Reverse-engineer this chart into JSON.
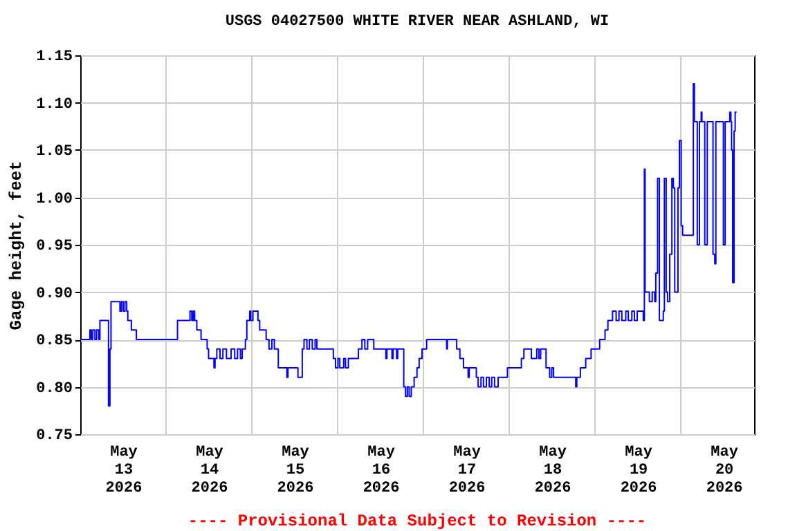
{
  "chart_data": {
    "type": "step",
    "title": "USGS 04027500 WHITE RIVER NEAR ASHLAND, WI",
    "ylabel": "Gage height, feet",
    "annotations": [
      "---- Provisional Data Subject to Revision ----"
    ],
    "xlim": [
      "2026-05-13T00:00",
      "2026-05-20T20:30"
    ],
    "xticks": [
      {
        "value": "2026-05-13T12:00",
        "label": "May 13 2026"
      },
      {
        "value": "2026-05-14T00:00",
        "label": null
      },
      {
        "value": "2026-05-14T12:00",
        "label": "May 14 2026"
      },
      {
        "value": "2026-05-15T00:00",
        "label": null
      },
      {
        "value": "2026-05-15T12:00",
        "label": "May 15 2026"
      },
      {
        "value": "2026-05-16T00:00",
        "label": null
      },
      {
        "value": "2026-05-16T12:00",
        "label": "May 16 2026"
      },
      {
        "value": "2026-05-17T00:00",
        "label": null
      },
      {
        "value": "2026-05-17T12:00",
        "label": "May 17 2026"
      },
      {
        "value": "2026-05-18T00:00",
        "label": null
      },
      {
        "value": "2026-05-18T12:00",
        "label": "May 18 2026"
      },
      {
        "value": "2026-05-19T00:00",
        "label": null
      },
      {
        "value": "2026-05-19T12:00",
        "label": "May 19 2026"
      },
      {
        "value": "2026-05-20T00:00",
        "label": null
      },
      {
        "value": "2026-05-20T12:00",
        "label": "May 20 2026"
      }
    ],
    "ylim": [
      0.75,
      1.15
    ],
    "yticks": [
      0.75,
      {
        "value": 0.8,
        "label": "0.80"
      },
      0.85,
      {
        "value": 0.9,
        "label": "0.90"
      },
      0.95,
      {
        "value": 1.0,
        "label": "1.00"
      },
      1.05,
      {
        "value": 1.1,
        "label": "1.10"
      },
      1.15
    ],
    "grid": true,
    "series": [
      {
        "color": "#0000ff",
        "x": [
          "2026-05-13T00:00",
          "2026-05-13T02:42",
          "2026-05-13T03:06",
          "2026-05-13T03:30",
          "2026-05-13T04:06",
          "2026-05-13T04:36",
          "2026-05-13T05:12",
          "2026-05-13T05:30",
          "2026-05-13T07:54",
          "2026-05-13T08:18",
          "2026-05-13T08:36",
          "2026-05-13T11:06",
          "2026-05-13T11:30",
          "2026-05-13T12:00",
          "2026-05-13T12:30",
          "2026-05-13T13:00",
          "2026-05-13T13:18",
          "2026-05-13T14:18",
          "2026-05-13T15:42",
          "2026-05-14T03:12",
          "2026-05-14T06:42",
          "2026-05-14T07:12",
          "2026-05-14T07:36",
          "2026-05-14T08:00",
          "2026-05-14T08:36",
          "2026-05-14T09:48",
          "2026-05-14T11:30",
          "2026-05-14T11:54",
          "2026-05-14T13:24",
          "2026-05-14T13:42",
          "2026-05-14T14:12",
          "2026-05-14T15:06",
          "2026-05-14T15:54",
          "2026-05-14T16:54",
          "2026-05-14T18:12",
          "2026-05-14T19:12",
          "2026-05-14T20:00",
          "2026-05-14T20:48",
          "2026-05-14T21:18",
          "2026-05-14T22:12",
          "2026-05-14T22:36",
          "2026-05-14T23:24",
          "2026-05-14T23:42",
          "2026-05-15T00:18",
          "2026-05-15T01:42",
          "2026-05-15T02:12",
          "2026-05-15T04:00",
          "2026-05-15T04:48",
          "2026-05-15T05:36",
          "2026-05-15T06:18",
          "2026-05-15T07:24",
          "2026-05-15T09:48",
          "2026-05-15T10:06",
          "2026-05-15T12:54",
          "2026-05-15T14:06",
          "2026-05-15T14:36",
          "2026-05-15T15:24",
          "2026-05-15T16:06",
          "2026-05-15T16:54",
          "2026-05-15T17:42",
          "2026-05-15T18:12",
          "2026-05-15T22:48",
          "2026-05-15T23:24",
          "2026-05-16T00:06",
          "2026-05-16T00:36",
          "2026-05-16T01:42",
          "2026-05-16T02:12",
          "2026-05-16T03:00",
          "2026-05-16T05:48",
          "2026-05-16T06:48",
          "2026-05-16T07:36",
          "2026-05-16T08:24",
          "2026-05-16T10:06",
          "2026-05-16T13:30",
          "2026-05-16T13:48",
          "2026-05-16T15:12",
          "2026-05-16T15:30",
          "2026-05-16T16:30",
          "2026-05-16T16:48",
          "2026-05-16T18:30",
          "2026-05-16T19:00",
          "2026-05-16T19:30",
          "2026-05-16T20:00",
          "2026-05-16T20:36",
          "2026-05-16T21:24",
          "2026-05-16T22:12",
          "2026-05-16T22:48",
          "2026-05-16T23:36",
          "2026-05-17T00:54",
          "2026-05-17T06:30",
          "2026-05-17T06:42",
          "2026-05-17T09:18",
          "2026-05-17T10:12",
          "2026-05-17T11:12",
          "2026-05-17T12:30",
          "2026-05-17T12:48",
          "2026-05-17T14:48",
          "2026-05-17T15:18",
          "2026-05-17T16:06",
          "2026-05-17T16:48",
          "2026-05-17T17:36",
          "2026-05-17T18:24",
          "2026-05-17T19:06",
          "2026-05-17T19:54",
          "2026-05-17T20:54",
          "2026-05-17T23:30",
          "2026-05-18T03:24",
          "2026-05-18T04:06",
          "2026-05-18T06:12",
          "2026-05-18T07:42",
          "2026-05-18T08:18",
          "2026-05-18T08:48",
          "2026-05-18T10:18",
          "2026-05-18T11:18",
          "2026-05-18T11:54",
          "2026-05-18T12:24",
          "2026-05-18T18:36",
          "2026-05-18T18:54",
          "2026-05-18T19:54",
          "2026-05-18T21:24",
          "2026-05-18T22:54",
          "2026-05-19T01:18",
          "2026-05-19T02:48",
          "2026-05-19T03:36",
          "2026-05-19T04:54",
          "2026-05-19T05:54",
          "2026-05-19T06:42",
          "2026-05-19T07:30",
          "2026-05-19T08:36",
          "2026-05-19T09:18",
          "2026-05-19T10:18",
          "2026-05-19T11:00",
          "2026-05-19T11:48",
          "2026-05-19T13:30",
          "2026-05-19T13:48",
          "2026-05-19T14:00",
          "2026-05-19T15:12",
          "2026-05-19T16:00",
          "2026-05-19T16:42",
          "2026-05-19T17:00",
          "2026-05-19T17:30",
          "2026-05-19T18:00",
          "2026-05-19T19:06",
          "2026-05-19T19:24",
          "2026-05-19T19:54",
          "2026-05-19T20:18",
          "2026-05-19T20:54",
          "2026-05-19T21:30",
          "2026-05-19T21:54",
          "2026-05-19T22:18",
          "2026-05-19T23:12",
          "2026-05-19T23:36",
          "2026-05-20T00:06",
          "2026-05-20T00:30",
          "2026-05-20T03:30",
          "2026-05-20T03:48",
          "2026-05-20T04:36",
          "2026-05-20T05:12",
          "2026-05-20T05:42",
          "2026-05-20T05:54",
          "2026-05-20T06:42",
          "2026-05-20T07:24",
          "2026-05-20T09:00",
          "2026-05-20T09:30",
          "2026-05-20T09:48",
          "2026-05-20T11:54",
          "2026-05-20T12:24",
          "2026-05-20T13:42",
          "2026-05-20T14:00",
          "2026-05-20T14:12",
          "2026-05-20T14:30",
          "2026-05-20T14:54",
          "2026-05-20T15:12",
          "2026-05-20T15:36"
        ],
        "values": [
          0.85,
          0.86,
          0.85,
          0.86,
          0.85,
          0.86,
          0.85,
          0.87,
          0.78,
          0.84,
          0.89,
          0.88,
          0.89,
          0.88,
          0.89,
          0.88,
          0.87,
          0.86,
          0.85,
          0.87,
          0.88,
          0.87,
          0.88,
          0.87,
          0.86,
          0.85,
          0.84,
          0.83,
          0.82,
          0.83,
          0.84,
          0.83,
          0.84,
          0.83,
          0.84,
          0.83,
          0.84,
          0.83,
          0.84,
          0.85,
          0.87,
          0.88,
          0.87,
          0.88,
          0.87,
          0.86,
          0.85,
          0.84,
          0.85,
          0.84,
          0.82,
          0.81,
          0.82,
          0.81,
          0.84,
          0.85,
          0.84,
          0.85,
          0.84,
          0.85,
          0.84,
          0.83,
          0.82,
          0.83,
          0.82,
          0.83,
          0.82,
          0.83,
          0.84,
          0.85,
          0.84,
          0.85,
          0.84,
          0.83,
          0.84,
          0.83,
          0.84,
          0.83,
          0.84,
          0.8,
          0.79,
          0.8,
          0.79,
          0.8,
          0.81,
          0.82,
          0.83,
          0.84,
          0.85,
          0.84,
          0.85,
          0.84,
          0.83,
          0.82,
          0.81,
          0.82,
          0.81,
          0.8,
          0.81,
          0.8,
          0.81,
          0.8,
          0.81,
          0.8,
          0.81,
          0.82,
          0.83,
          0.84,
          0.83,
          0.84,
          0.83,
          0.84,
          0.82,
          0.81,
          0.82,
          0.81,
          0.8,
          0.81,
          0.82,
          0.83,
          0.84,
          0.85,
          0.86,
          0.87,
          0.88,
          0.87,
          0.88,
          0.87,
          0.88,
          0.87,
          0.88,
          0.87,
          0.88,
          0.87,
          1.03,
          0.9,
          0.89,
          0.9,
          0.89,
          0.92,
          1.02,
          0.87,
          0.88,
          1.02,
          0.9,
          0.89,
          0.94,
          1.02,
          1.01,
          0.9,
          1.01,
          1.06,
          0.97,
          0.96,
          1.12,
          1.08,
          0.95,
          1.08,
          1.09,
          1.08,
          0.95,
          1.08,
          0.94,
          0.93,
          1.08,
          0.95,
          1.08,
          1.09,
          1.08,
          1.05,
          0.91,
          1.07,
          1.09,
          1.09
        ]
      }
    ]
  }
}
